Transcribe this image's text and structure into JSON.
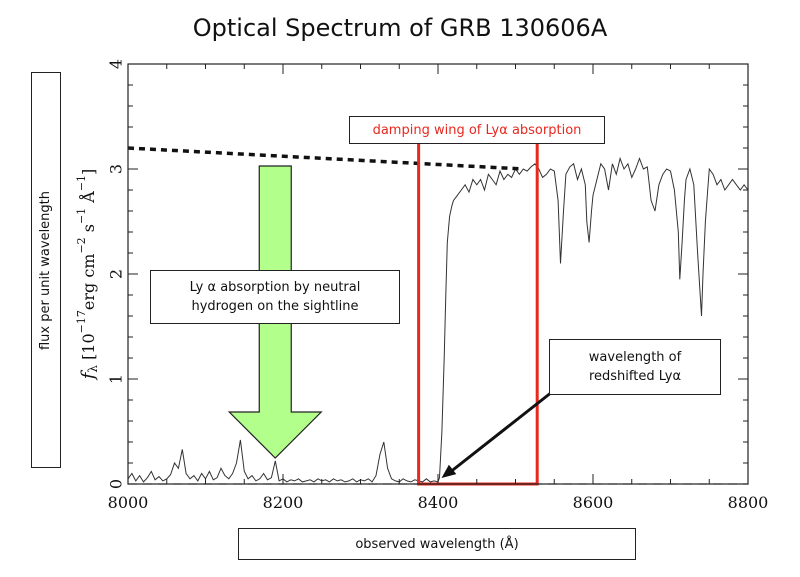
{
  "title": "Optical Spectrum of GRB 130606A",
  "outer_ylabel": "flux per unit wavelength",
  "outer_xlabel": "observed wavelength (Å)",
  "annotations": {
    "absorption": "Ly α absorption by neutral hydrogen on the sightline",
    "redshift": "wavelength of redshifted Lyα",
    "damping": "damping wing of Lyα absorption"
  },
  "colors": {
    "arrow_fill": "#b3ff8c",
    "highlight_box": "#e8281f",
    "damping_text": "#e8281f",
    "spectrum": "#333333"
  },
  "chart_data": {
    "type": "line",
    "title": "Optical Spectrum of GRB 130606A",
    "xlabel": "",
    "ylabel": "f_λ [10^-17 erg cm^-2 s^-1 Å^-1]",
    "ylabel_parts": {
      "sym": "f",
      "sub": "λ",
      "pre": "[10",
      "exp": "−17",
      "unit": "erg  cm",
      "e2": "−2",
      "s": "s",
      "e1": "−1",
      "A": "Å",
      "e3": "−1",
      "post": "]"
    },
    "xlim": [
      8000,
      8800
    ],
    "ylim": [
      0,
      4
    ],
    "xticks": [
      8000,
      8200,
      8400,
      8600,
      8800
    ],
    "yticks": [
      0,
      1,
      2,
      3,
      4
    ],
    "grid": false,
    "zero_line": true,
    "continuum_extrapolation": {
      "x": [
        8000,
        8510
      ],
      "y": [
        3.2,
        3.0
      ]
    },
    "highlight_region": {
      "x": [
        8375,
        8528
      ],
      "y": [
        0,
        3.3
      ]
    },
    "lyalpha_wavelength": 8402,
    "series": [
      {
        "x": [
          8000,
          8005,
          8010,
          8015,
          8020,
          8025,
          8030,
          8035,
          8040,
          8045,
          8050,
          8055,
          8060,
          8065,
          8070,
          8075,
          8080,
          8085,
          8090,
          8095,
          8100,
          8105,
          8110,
          8115,
          8120,
          8125,
          8130,
          8135,
          8140,
          8145,
          8150,
          8155,
          8160,
          8165,
          8170,
          8175,
          8180,
          8185,
          8190,
          8195,
          8200,
          8205,
          8210,
          8215,
          8220,
          8225,
          8230,
          8235,
          8240,
          8245,
          8250,
          8255,
          8260,
          8265,
          8270,
          8275,
          8280,
          8285,
          8290,
          8295,
          8300,
          8305,
          8310,
          8315,
          8320,
          8325,
          8330,
          8335,
          8340,
          8345,
          8350,
          8355,
          8360,
          8365,
          8370,
          8375,
          8380,
          8385,
          8390,
          8395,
          8400,
          8402,
          8405,
          8408,
          8410,
          8412,
          8415,
          8418,
          8420,
          8425,
          8430,
          8435,
          8440,
          8445,
          8450,
          8455,
          8460,
          8465,
          8470,
          8475,
          8480,
          8485,
          8490,
          8495,
          8500,
          8505,
          8510,
          8515,
          8520,
          8525,
          8530,
          8535,
          8540,
          8545,
          8550,
          8555,
          8558,
          8562,
          8565,
          8570,
          8575,
          8580,
          8585,
          8590,
          8592,
          8595,
          8598,
          8600,
          8605,
          8610,
          8615,
          8620,
          8625,
          8630,
          8635,
          8640,
          8645,
          8650,
          8655,
          8660,
          8665,
          8670,
          8675,
          8680,
          8685,
          8690,
          8695,
          8700,
          8705,
          8710,
          8712,
          8715,
          8718,
          8720,
          8725,
          8730,
          8735,
          8740,
          8742,
          8745,
          8748,
          8750,
          8755,
          8760,
          8765,
          8770,
          8775,
          8780,
          8785,
          8790,
          8795,
          8800
        ],
        "y": [
          0.05,
          0.1,
          0.03,
          0.08,
          0.02,
          0.06,
          0.12,
          0.04,
          0.07,
          0.03,
          0.05,
          0.09,
          0.2,
          0.15,
          0.33,
          0.1,
          0.05,
          0.08,
          0.03,
          0.1,
          0.05,
          0.12,
          0.04,
          0.06,
          0.15,
          0.08,
          0.05,
          0.1,
          0.2,
          0.42,
          0.12,
          0.05,
          0.08,
          0.03,
          0.05,
          0.1,
          0.04,
          0.06,
          0.22,
          0.03,
          0.05,
          0.02,
          0.04,
          0.03,
          0.05,
          0.02,
          0.03,
          0.04,
          0.02,
          0.05,
          0.03,
          0.04,
          0.02,
          0.05,
          0.03,
          0.04,
          0.02,
          0.03,
          0.05,
          0.02,
          0.04,
          0.03,
          0.05,
          0.02,
          0.08,
          0.28,
          0.4,
          0.15,
          0.05,
          0.03,
          0.02,
          0.05,
          0.03,
          0.02,
          0.04,
          0.03,
          0.02,
          0.05,
          0.02,
          0.03,
          0.02,
          0.06,
          0.5,
          1.2,
          1.8,
          2.3,
          2.55,
          2.65,
          2.7,
          2.75,
          2.8,
          2.85,
          2.78,
          2.9,
          2.85,
          2.9,
          2.8,
          2.95,
          2.9,
          2.85,
          2.98,
          2.9,
          2.95,
          2.92,
          3.0,
          2.95,
          3.0,
          2.98,
          3.02,
          3.05,
          3.0,
          2.92,
          2.95,
          3.0,
          2.98,
          2.7,
          2.1,
          2.6,
          2.95,
          3.02,
          3.05,
          2.9,
          3.0,
          2.85,
          2.5,
          2.3,
          2.6,
          2.75,
          2.9,
          3.05,
          3.0,
          2.8,
          3.05,
          2.95,
          3.1,
          3.0,
          3.05,
          2.92,
          3.0,
          3.1,
          3.0,
          3.02,
          2.7,
          2.6,
          2.85,
          2.95,
          3.0,
          2.98,
          2.8,
          2.4,
          1.95,
          2.3,
          2.7,
          2.9,
          3.0,
          2.85,
          2.2,
          1.6,
          2.0,
          2.5,
          2.8,
          3.0,
          2.95,
          2.85,
          2.9,
          2.8,
          2.85,
          2.9,
          2.85,
          2.8,
          2.85,
          2.8
        ]
      }
    ]
  }
}
